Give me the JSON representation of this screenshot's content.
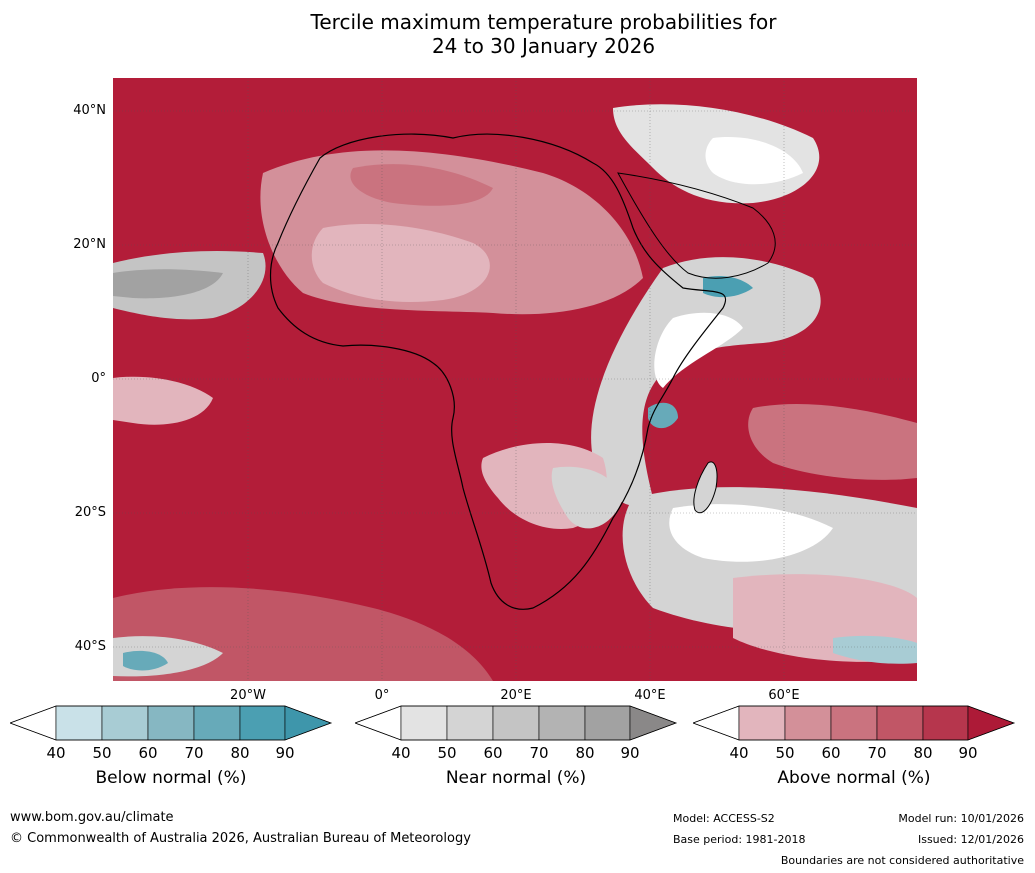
{
  "title": {
    "line1": "Tercile maximum temperature probabilities for",
    "line2": "24 to 30 January 2026"
  },
  "map": {
    "region": "Africa and surrounding oceans",
    "lat_labels": [
      "40°N",
      "20°N",
      "0°",
      "20°S",
      "40°S"
    ],
    "lon_labels": [
      "20°W",
      "0°",
      "20°E",
      "40°E",
      "60°E"
    ],
    "colors": {
      "above_dominant": "#b31d39",
      "above_light": "#e2b5bd",
      "near": "#d4d4d4",
      "below": "#4b9fb2"
    }
  },
  "legend": {
    "ticks": [
      "40",
      "50",
      "60",
      "70",
      "80",
      "90"
    ],
    "below": {
      "title": "Below normal (%)",
      "colors": [
        "#ffffff",
        "#c9e1e8",
        "#a8ccd4",
        "#86b7c2",
        "#67aab9",
        "#4b9fb2",
        "#3e96ab"
      ]
    },
    "near": {
      "title": "Near normal (%)",
      "colors": [
        "#ffffff",
        "#e3e3e3",
        "#d4d4d4",
        "#c4c4c4",
        "#b3b3b3",
        "#a2a2a2",
        "#8a8888"
      ]
    },
    "above": {
      "title": "Above normal (%)",
      "colors": [
        "#ffffff",
        "#e2b5bd",
        "#d39099",
        "#ca737f",
        "#c15666",
        "#b6364d",
        "#ad1a37"
      ]
    }
  },
  "footer": {
    "website": "www.bom.gov.au/climate",
    "copyright": "© Commonwealth of Australia 2026, Australian Bureau of Meteorology",
    "model": "Model: ACCESS-S2",
    "base_period": "Base period: 1981-2018",
    "model_run": "Model run: 10/01/2026",
    "issued": "Issued: 12/01/2026",
    "disclaimer": "Boundaries are not considered authoritative"
  }
}
